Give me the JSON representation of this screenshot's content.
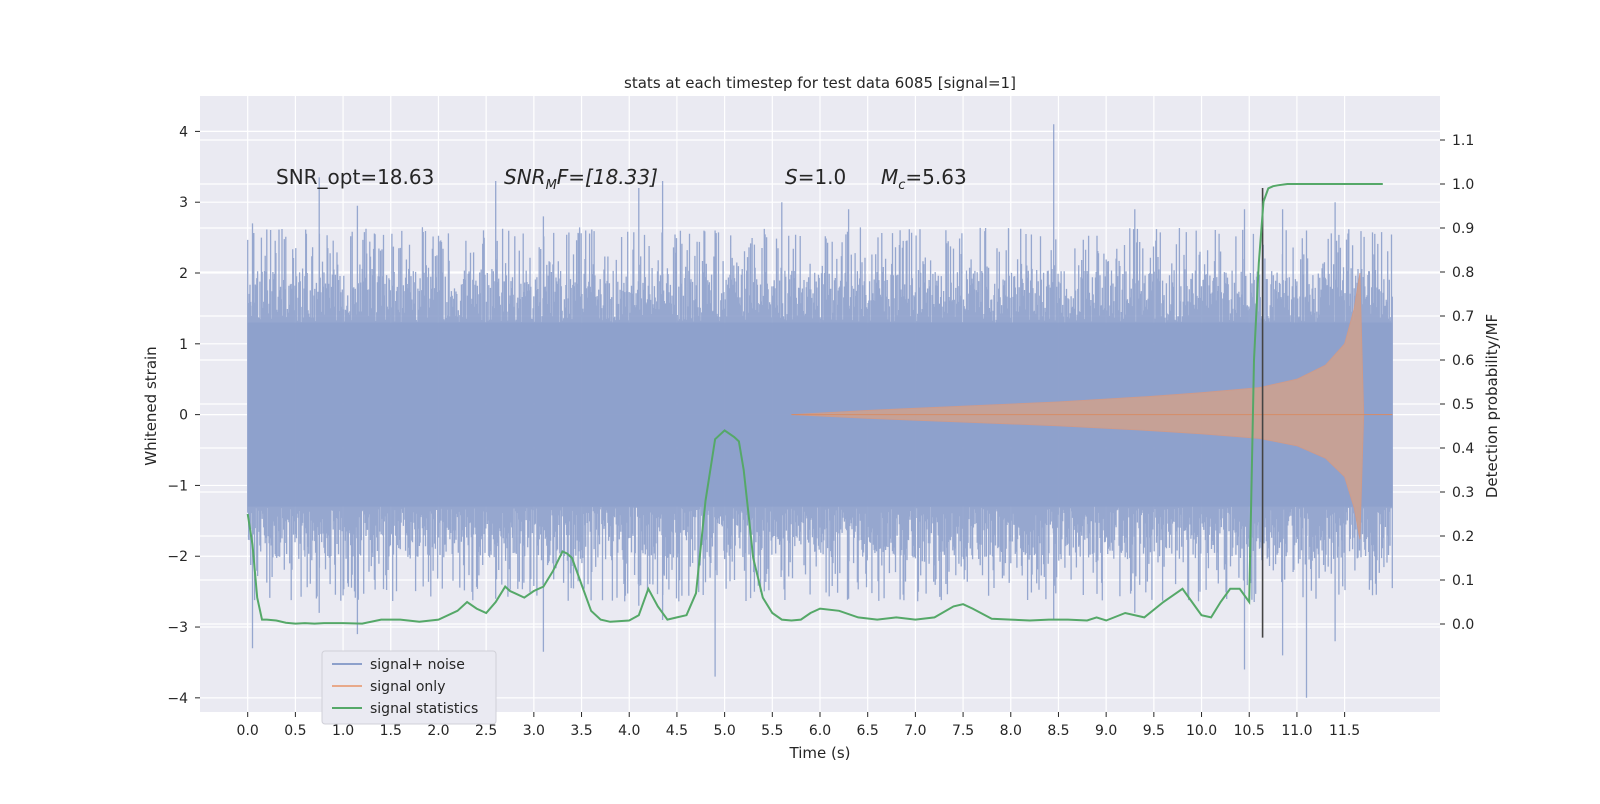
{
  "chart_data": {
    "type": "line",
    "title": "stats at each timestep for test data 6085 [signal=1]",
    "xlabel": "Time (s)",
    "ylabel": "Whitened strain",
    "y2label": "Detection probability/MF",
    "xlim": [
      -0.5,
      12.5
    ],
    "ylim": [
      -4.2,
      4.5
    ],
    "y2lim": [
      -0.2,
      1.2
    ],
    "xticks": [
      0.0,
      0.5,
      1.0,
      1.5,
      2.0,
      2.5,
      3.0,
      3.5,
      4.0,
      4.5,
      5.0,
      5.5,
      6.0,
      6.5,
      7.0,
      7.5,
      8.0,
      8.5,
      9.0,
      9.5,
      10.0,
      10.5,
      11.0,
      11.5
    ],
    "xtick_labels": [
      "0.0",
      "0.5",
      "1.0",
      "1.5",
      "2.0",
      "2.5",
      "3.0",
      "3.5",
      "4.0",
      "4.5",
      "5.0",
      "5.5",
      "6.0",
      "6.5",
      "7.0",
      "7.5",
      "8.0",
      "8.5",
      "9.0",
      "9.5",
      "10.0",
      "10.5",
      "11.0",
      "11.5"
    ],
    "yticks": [
      4,
      3,
      2,
      1,
      0,
      -1,
      -2,
      -3,
      -4
    ],
    "ytick_labels": [
      "4",
      "3",
      "2",
      "1",
      "0",
      "−1",
      "−2",
      "−3",
      "−4"
    ],
    "y2ticks": [
      1.1,
      1.0,
      0.9,
      0.8,
      0.7,
      0.6,
      0.5,
      0.4,
      0.3,
      0.2,
      0.1,
      0.0
    ],
    "y2tick_labels": [
      "1.1",
      "1.0",
      "0.9",
      "0.8",
      "0.7",
      "0.6",
      "0.5",
      "0.4",
      "0.3",
      "0.2",
      "0.1",
      "0.0"
    ],
    "grid": true,
    "legend_position": "bottom-left",
    "annotations": {
      "snr_opt": "SNR_opt=18.63",
      "snr_mf_main": "SNR",
      "snr_mf_sub": "M",
      "snr_mf_rest": "F=[18.33]",
      "s_label": "S",
      "s_value": "=1.0",
      "mc_label": "M",
      "mc_sub": "c",
      "mc_value": "=5.63"
    },
    "marker_line_x": 10.64,
    "colors": {
      "noise": "#8da0cb",
      "signal": "#dd8452",
      "stats": "#55a868",
      "background": "#eaeaf2",
      "grid": "#ffffff",
      "marker": "#444444"
    },
    "series": [
      {
        "name": "signal+ noise",
        "kind": "band",
        "x_range": [
          0.0,
          12.0
        ],
        "typical_envelope": [
          -1.3,
          1.3
        ],
        "peaks": [
          [
            0.05,
            2.7,
            -3.3
          ],
          [
            0.75,
            3.35,
            -2.8
          ],
          [
            1.15,
            2.95,
            -3.1
          ],
          [
            2.6,
            3.3,
            -2.6
          ],
          [
            3.1,
            2.8,
            -3.35
          ],
          [
            4.1,
            3.2,
            -2.7
          ],
          [
            4.35,
            3.3,
            -2.9
          ],
          [
            4.9,
            2.6,
            -3.7
          ],
          [
            5.6,
            3.0,
            -2.2
          ],
          [
            6.3,
            2.9,
            -2.6
          ],
          [
            8.45,
            4.1,
            -2.9
          ],
          [
            9.3,
            2.9,
            -2.8
          ],
          [
            10.45,
            2.9,
            -3.6
          ],
          [
            10.85,
            2.9,
            -3.4
          ],
          [
            11.4,
            3.0,
            -3.2
          ],
          [
            11.1,
            2.6,
            -4.0
          ]
        ]
      },
      {
        "name": "signal only",
        "kind": "chirp_envelope",
        "x": [
          5.7,
          6.5,
          7.5,
          8.5,
          9.5,
          10.0,
          10.6,
          11.0,
          11.3,
          11.5,
          11.6,
          11.66,
          11.7,
          12.0
        ],
        "amplitude": [
          0.0,
          0.06,
          0.12,
          0.18,
          0.26,
          0.31,
          0.38,
          0.5,
          0.7,
          1.0,
          1.5,
          2.0,
          0.0,
          0.0
        ]
      },
      {
        "name": "signal statistics",
        "kind": "line",
        "axis": "right",
        "x": [
          0.0,
          0.05,
          0.1,
          0.15,
          0.2,
          0.3,
          0.4,
          0.5,
          0.6,
          0.7,
          0.8,
          1.0,
          1.2,
          1.4,
          1.6,
          1.8,
          2.0,
          2.2,
          2.3,
          2.4,
          2.5,
          2.6,
          2.7,
          2.75,
          2.8,
          2.9,
          3.0,
          3.1,
          3.2,
          3.3,
          3.35,
          3.4,
          3.5,
          3.6,
          3.7,
          3.8,
          4.0,
          4.1,
          4.2,
          4.3,
          4.4,
          4.5,
          4.6,
          4.7,
          4.8,
          4.9,
          5.0,
          5.1,
          5.15,
          5.2,
          5.25,
          5.3,
          5.4,
          5.5,
          5.6,
          5.7,
          5.8,
          5.9,
          6.0,
          6.2,
          6.4,
          6.6,
          6.8,
          7.0,
          7.2,
          7.4,
          7.5,
          7.6,
          7.8,
          8.0,
          8.2,
          8.4,
          8.6,
          8.8,
          8.9,
          9.0,
          9.2,
          9.4,
          9.6,
          9.7,
          9.8,
          9.9,
          10.0,
          10.1,
          10.2,
          10.3,
          10.4,
          10.5,
          10.55,
          10.6,
          10.65,
          10.7,
          10.75,
          10.8,
          10.9,
          11.0,
          11.2,
          11.5,
          11.8,
          11.9
        ],
        "values": [
          0.25,
          0.18,
          0.06,
          0.01,
          0.01,
          0.008,
          0.003,
          0.001,
          0.002,
          0.001,
          0.002,
          0.002,
          0.001,
          0.01,
          0.01,
          0.005,
          0.01,
          0.03,
          0.05,
          0.035,
          0.025,
          0.05,
          0.085,
          0.075,
          0.07,
          0.06,
          0.075,
          0.085,
          0.12,
          0.165,
          0.16,
          0.15,
          0.09,
          0.03,
          0.01,
          0.005,
          0.008,
          0.02,
          0.08,
          0.04,
          0.01,
          0.015,
          0.02,
          0.07,
          0.28,
          0.42,
          0.44,
          0.425,
          0.415,
          0.35,
          0.25,
          0.15,
          0.06,
          0.025,
          0.01,
          0.008,
          0.01,
          0.025,
          0.035,
          0.03,
          0.015,
          0.01,
          0.015,
          0.01,
          0.015,
          0.04,
          0.045,
          0.035,
          0.012,
          0.01,
          0.008,
          0.01,
          0.01,
          0.008,
          0.015,
          0.008,
          0.025,
          0.015,
          0.05,
          0.065,
          0.08,
          0.05,
          0.02,
          0.015,
          0.05,
          0.08,
          0.08,
          0.05,
          0.6,
          0.82,
          0.96,
          0.99,
          0.995,
          0.997,
          1.0,
          1.0,
          1.0,
          1.0,
          1.0,
          1.0
        ]
      }
    ]
  }
}
